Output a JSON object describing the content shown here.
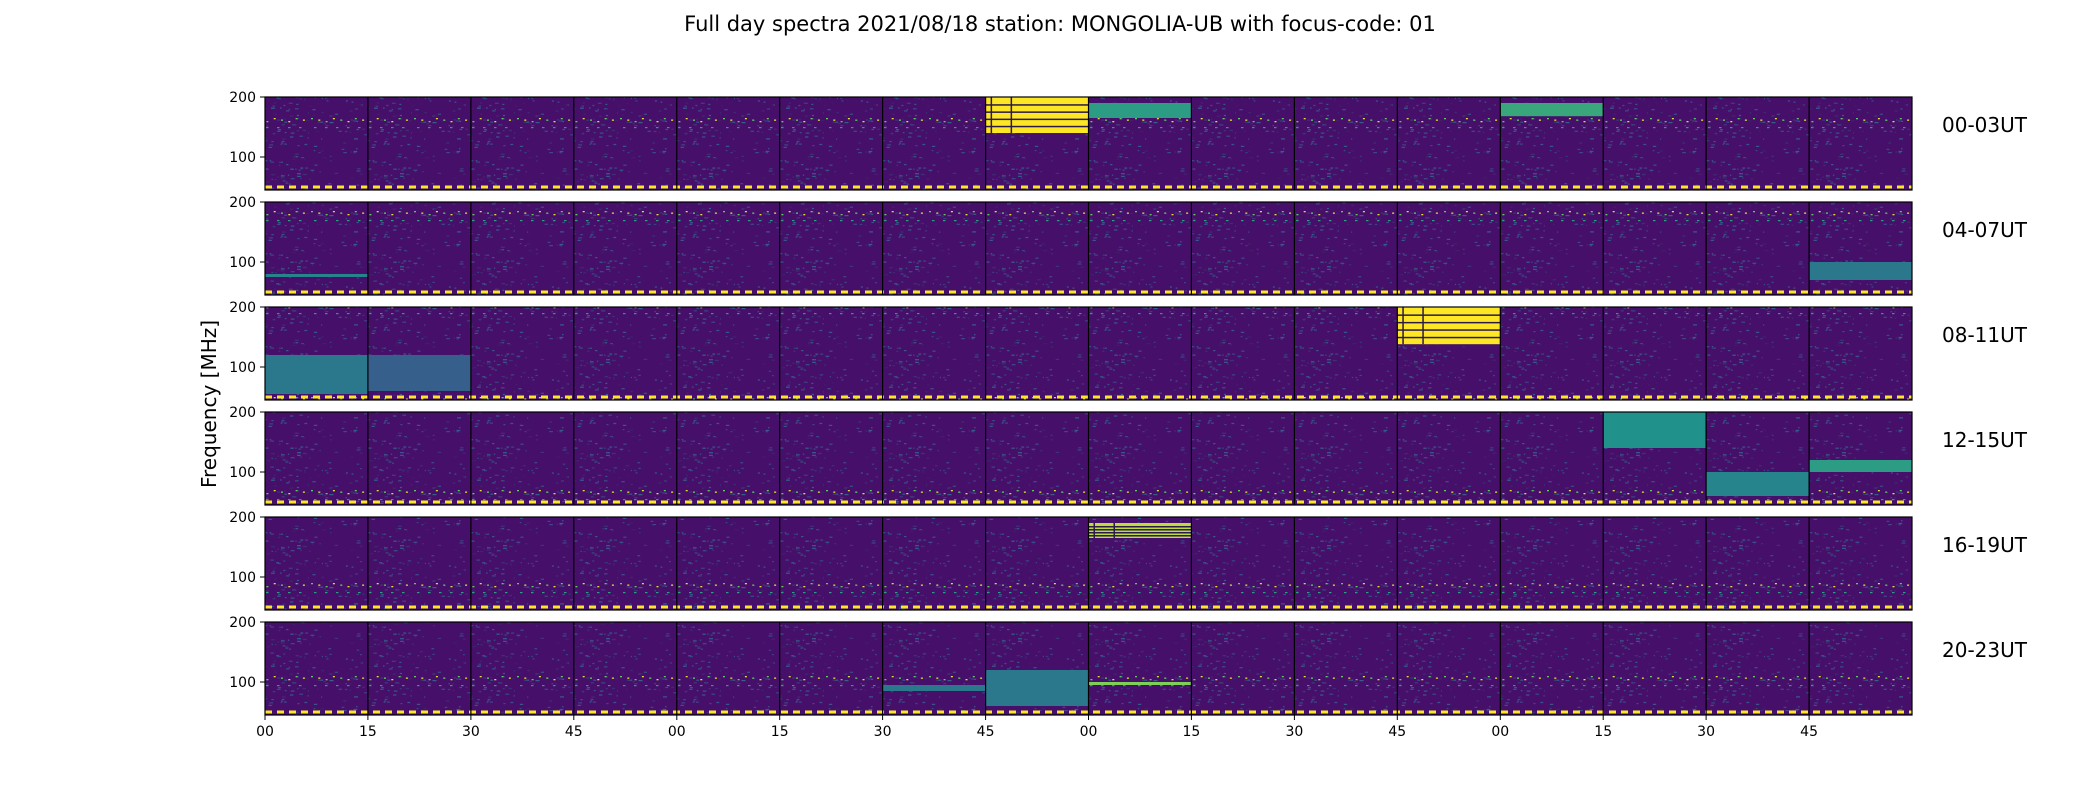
{
  "chart_data": {
    "type": "heatmap",
    "title": "Full day spectra 2021/08/18 station: MONGOLIA-UB with focus-code: 01",
    "ylabel": "Frequency [MHz]",
    "xlabel": "",
    "ylim": [
      45,
      200
    ],
    "y_ticks": [
      "200",
      "100"
    ],
    "y_tick_values": [
      200,
      100
    ],
    "x_ticks": [
      "00",
      "15",
      "30",
      "45",
      "00",
      "15",
      "30",
      "45",
      "00",
      "15",
      "30",
      "45",
      "00",
      "15",
      "30",
      "45"
    ],
    "segment_minutes": 15,
    "segments_per_row": 16,
    "colormap": [
      "#440154",
      "#3b528b",
      "#21918c",
      "#5ec962",
      "#fde725"
    ],
    "grid": false,
    "rows": [
      {
        "label": "00-03UT",
        "hot_segments": [
          7,
          8,
          12
        ],
        "bursts": [
          {
            "segment": 7,
            "fmin": 140,
            "fmax": 200,
            "level": 1.0
          },
          {
            "segment": 8,
            "fmin": 165,
            "fmax": 190,
            "level": 0.55
          },
          {
            "segment": 12,
            "fmin": 168,
            "fmax": 190,
            "level": 0.6
          }
        ]
      },
      {
        "label": "04-07UT",
        "hot_segments": [],
        "bursts": [
          {
            "segment": 0,
            "fmin": 75,
            "fmax": 80,
            "level": 0.45
          },
          {
            "segment": 15,
            "fmin": 70,
            "fmax": 100,
            "level": 0.4
          }
        ]
      },
      {
        "label": "08-11UT",
        "hot_segments": [
          11
        ],
        "bursts": [
          {
            "segment": 11,
            "fmin": 138,
            "fmax": 200,
            "level": 1.0
          },
          {
            "segment": 0,
            "fmin": 55,
            "fmax": 120,
            "level": 0.4
          },
          {
            "segment": 1,
            "fmin": 60,
            "fmax": 120,
            "level": 0.3
          }
        ]
      },
      {
        "label": "12-15UT",
        "hot_segments": [
          13
        ],
        "bursts": [
          {
            "segment": 13,
            "fmin": 140,
            "fmax": 200,
            "level": 0.5
          },
          {
            "segment": 14,
            "fmin": 60,
            "fmax": 100,
            "level": 0.45
          },
          {
            "segment": 15,
            "fmin": 100,
            "fmax": 120,
            "level": 0.55
          }
        ]
      },
      {
        "label": "16-19UT",
        "hot_segments": [
          8
        ],
        "bursts": [
          {
            "segment": 8,
            "fmin": 165,
            "fmax": 190,
            "level": 0.9
          }
        ]
      },
      {
        "label": "20-23UT",
        "hot_segments": [],
        "bursts": [
          {
            "segment": 6,
            "fmin": 85,
            "fmax": 95,
            "level": 0.4
          },
          {
            "segment": 7,
            "fmin": 60,
            "fmax": 120,
            "level": 0.4
          },
          {
            "segment": 8,
            "fmin": 95,
            "fmax": 100,
            "level": 0.8
          }
        ]
      }
    ]
  }
}
